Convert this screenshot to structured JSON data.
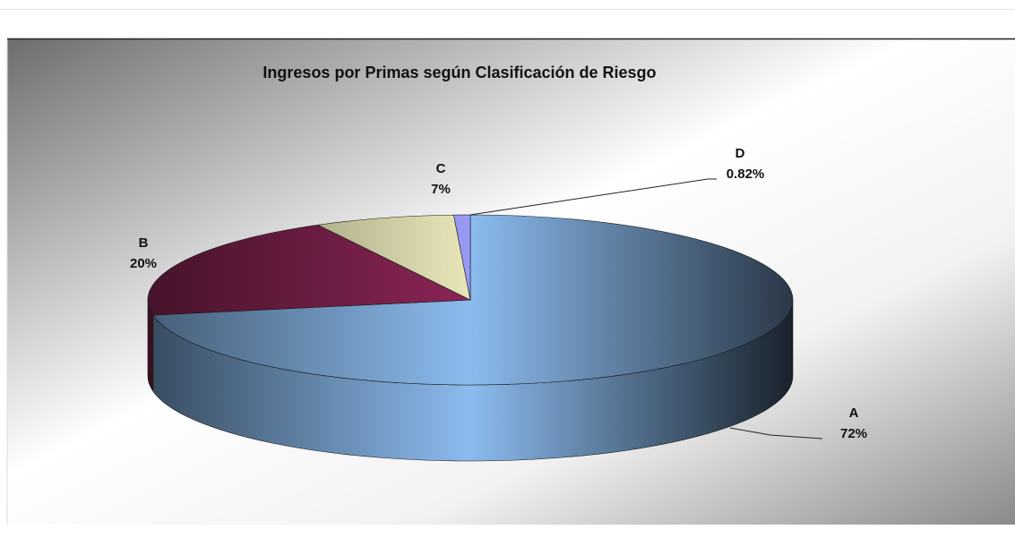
{
  "chart_data": {
    "type": "pie",
    "title": "Ingresos por Primas según Clasificación de Riesgo",
    "categories": [
      "A",
      "B",
      "C",
      "D"
    ],
    "values": [
      72,
      20,
      7,
      0.82
    ],
    "value_labels": [
      "72%",
      "20%",
      "7%",
      "0.82%"
    ],
    "colors": [
      "#8bbbee",
      "#8b2556",
      "#e9e7b9",
      "#9a9af5"
    ]
  }
}
